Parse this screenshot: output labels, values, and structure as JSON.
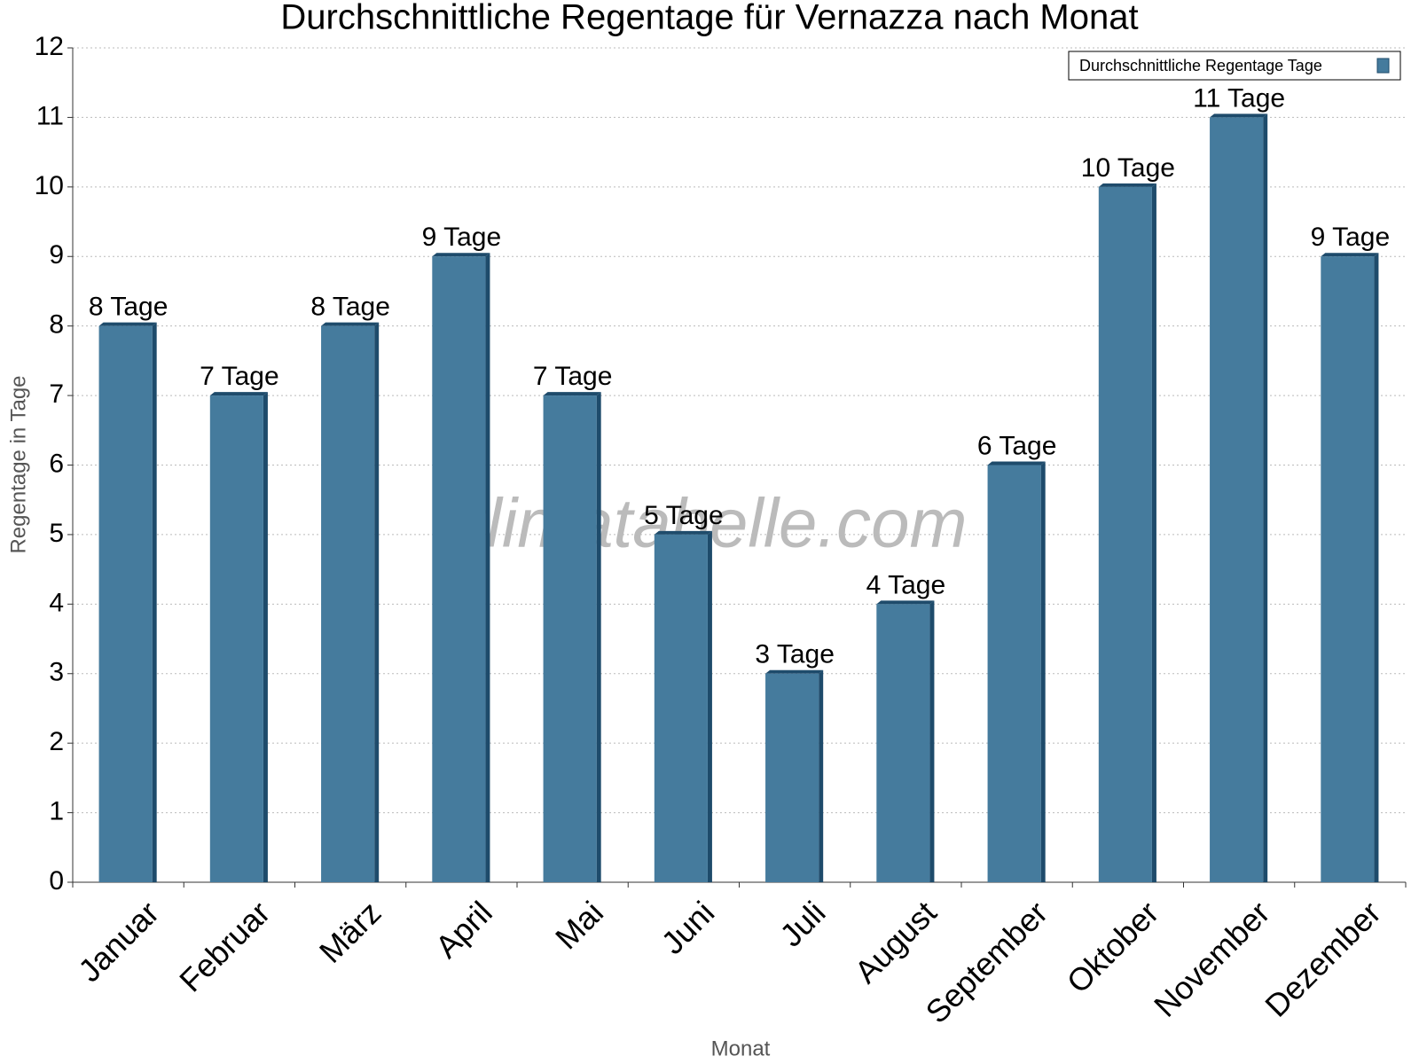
{
  "chart_data": {
    "type": "bar",
    "title": "Durchschnittliche Regentage für Vernazza nach Monat",
    "watermark": "klimatabelle.com",
    "x_label": "Monat",
    "y_label": "Regentage in Tage",
    "categories": [
      "Januar",
      "Februar",
      "März",
      "April",
      "Mai",
      "Juni",
      "Juli",
      "August",
      "September",
      "Oktober",
      "November",
      "Dezember"
    ],
    "series": [
      {
        "name": "Durchschnittliche Regentage Tage",
        "color": "#457b9d",
        "values": [
          8,
          7,
          8,
          9,
          7,
          5,
          3,
          4,
          6,
          10,
          11,
          9
        ],
        "value_labels": [
          "8 Tage",
          "7 Tage",
          "8 Tage",
          "9 Tage",
          "7 Tage",
          "5 Tage",
          "3 Tage",
          "4 Tage",
          "6 Tage",
          "10 Tage",
          "11 Tage",
          "9 Tage"
        ]
      }
    ],
    "ylim": [
      0,
      12
    ],
    "yticks": [
      0,
      1,
      2,
      3,
      4,
      5,
      6,
      7,
      8,
      9,
      10,
      11,
      12
    ],
    "grid": true,
    "legend": "top-right"
  }
}
